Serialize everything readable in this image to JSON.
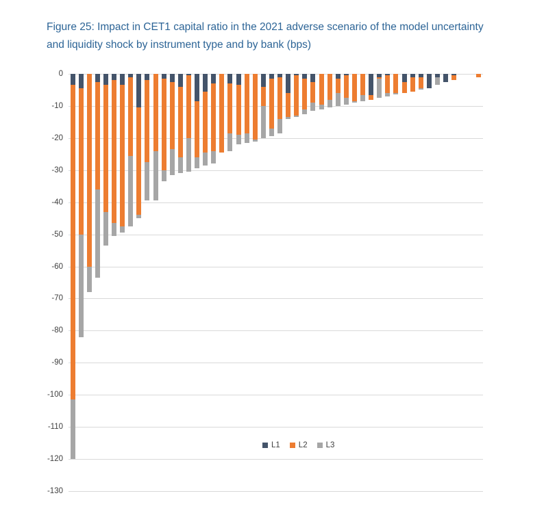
{
  "figure_title": {
    "line1": "Figure 25: Impact in CET1 capital ratio in the 2021 adverse scenario of the model uncertainty",
    "line2": "and liquidity shock by instrument type and by bank (bps)",
    "color": "#2C6496"
  },
  "chart_data": {
    "type": "bar",
    "stacked": true,
    "orientation": "vertical",
    "title": "Figure 25: Impact in CET1 capital ratio in the 2021 adverse scenario of the model uncertainty and liquidity shock by instrument type and by bank (bps)",
    "unit": "bps",
    "ylim": [
      -130,
      0
    ],
    "y_ticks": [
      0,
      -10,
      -20,
      -30,
      -40,
      -50,
      -60,
      -70,
      -80,
      -90,
      -100,
      -110,
      -120,
      -130
    ],
    "x_tick_labels": [],
    "grid": true,
    "legend_position": "bottom-center",
    "n_bars": 50,
    "style": {
      "gridline_color": "#D9D9D9",
      "axis_label_color": "#404040",
      "background": "#FFFFFF"
    },
    "series": [
      {
        "name": "L1",
        "color": "#44546A",
        "values": [
          -3.5,
          -4.5,
          0,
          -2.5,
          -3.5,
          -2,
          -3.5,
          -1,
          -10.5,
          -2,
          0,
          -1.5,
          -2.5,
          -4,
          -0.5,
          -8.5,
          -5.5,
          -3,
          0,
          -3,
          -3.5,
          0,
          0,
          -4,
          -1.5,
          -1,
          -6,
          -0.5,
          -1.5,
          -2.5,
          0,
          0,
          -1.5,
          -0.5,
          0,
          0,
          -6.5,
          -1,
          -0.5,
          0,
          -2.5,
          -1,
          -1,
          -4.5,
          -1,
          -2.5,
          -0.5,
          0,
          0,
          0
        ]
      },
      {
        "name": "L2",
        "color": "#ED7D31",
        "values": [
          -98,
          -45.5,
          -60,
          -33.5,
          -39.5,
          -44.5,
          -44,
          -24.5,
          -33.5,
          -25.5,
          -24,
          -28.5,
          -21,
          -22,
          -19.5,
          -17.5,
          -19,
          -21,
          -24.5,
          -15.5,
          -15.5,
          -18.5,
          -20.5,
          -6,
          -15.5,
          -13,
          -7.5,
          -12.5,
          -9.5,
          -6.5,
          -9.5,
          -8,
          -4.5,
          -7,
          -8.5,
          -6.5,
          -1.5,
          -0.5,
          -5.5,
          -6,
          -3.5,
          -4.5,
          -3.5,
          0,
          0,
          0,
          -1.5,
          0,
          0,
          -1
        ]
      },
      {
        "name": "L3",
        "color": "#A6A6A6",
        "values": [
          -18.5,
          -32,
          -8,
          -27.5,
          -10.5,
          -4,
          -2,
          -22,
          -1,
          -12,
          -15.5,
          -3.5,
          -8,
          -5,
          -10.5,
          -3.5,
          -4,
          -4,
          0,
          -5.5,
          -3,
          -3,
          -0.5,
          -10,
          -2.5,
          -4.5,
          -0.5,
          -0.5,
          -1.5,
          -2.5,
          -1.5,
          -2.5,
          -4,
          -2,
          -0.5,
          -2,
          0,
          -6,
          -1,
          -0.5,
          0,
          0,
          -0.5,
          0,
          -2.5,
          0,
          0,
          0,
          0,
          0
        ]
      }
    ]
  }
}
